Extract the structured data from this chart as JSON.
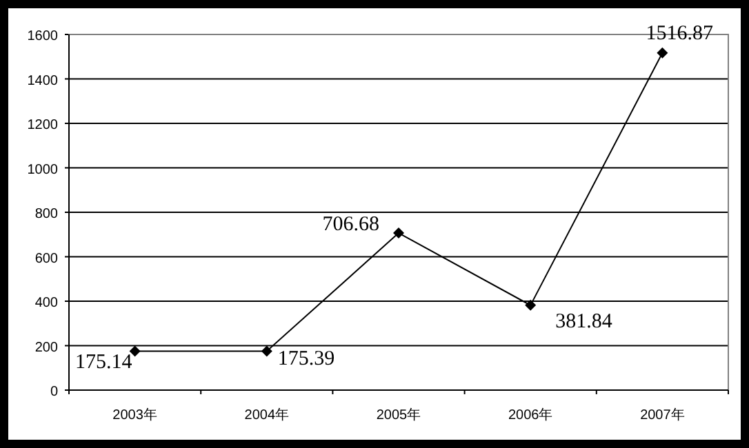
{
  "chart_data": {
    "type": "line",
    "categories": [
      "2003年",
      "2004年",
      "2005年",
      "2006年",
      "2007年"
    ],
    "series": [
      {
        "color": "#000000",
        "values": [
          175.14,
          175.39,
          706.68,
          381.84,
          1516.87
        ]
      }
    ],
    "ylim": [
      0,
      1600
    ],
    "yticks": [
      0,
      200,
      400,
      600,
      800,
      1000,
      1200,
      1400,
      1600
    ],
    "grid": "y",
    "marker": "diamond",
    "line_style": "solid",
    "data_labels": true
  }
}
